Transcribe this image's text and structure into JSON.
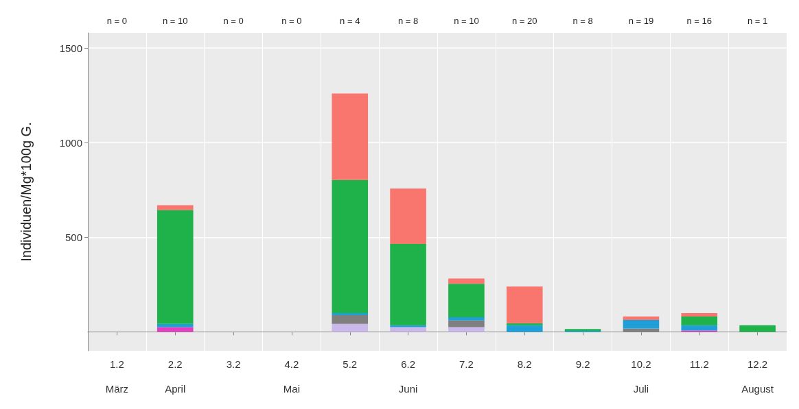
{
  "chart_data": {
    "type": "bar",
    "ylabel": "Individuen/Mg*100g G.",
    "stacked": true,
    "grid": true,
    "categories": [
      "1.2\n\nMärz",
      "2.2\n\nApril",
      "3.2",
      "4.2\n\nMai",
      "5.2",
      "6.2\n\nJuni",
      "7.2",
      "8.2",
      "9.2",
      "10.2\n\nJuli",
      "11.2",
      "12.2\n\nAugust"
    ],
    "series": [
      {
        "color": "#e040c0",
        "values": [
          null,
          25,
          null,
          null,
          null,
          null,
          null,
          null,
          null,
          null,
          7,
          null
        ]
      },
      {
        "color": "#cbb8ea",
        "values": [
          null,
          null,
          null,
          null,
          42,
          25,
          25,
          null,
          null,
          null,
          null,
          null
        ]
      },
      {
        "color": "#7f7f7f",
        "values": [
          null,
          null,
          null,
          null,
          46,
          null,
          35,
          null,
          null,
          18,
          null,
          null
        ]
      },
      {
        "color": "#1e9fd8",
        "values": [
          null,
          17,
          null,
          null,
          11,
          10,
          17,
          35,
          5,
          45,
          28,
          null
        ]
      },
      {
        "color": "#1fb24a",
        "values": [
          null,
          602,
          null,
          null,
          704,
          430,
          177,
          11,
          10,
          null,
          46,
          35
        ]
      },
      {
        "color": "#f8766d",
        "values": [
          null,
          25,
          null,
          null,
          457,
          292,
          28,
          193,
          null,
          18,
          18,
          null
        ]
      }
    ],
    "ylim": [
      -100,
      1580
    ],
    "yticks": [
      500,
      1000,
      1500
    ],
    "annotations": [
      "n = 0",
      "n = 10",
      "n = 0",
      "n = 0",
      "n = 4",
      "n = 8",
      "n = 10",
      "n = 20",
      "n = 8",
      "n = 19",
      "n = 16",
      "n = 1"
    ]
  }
}
